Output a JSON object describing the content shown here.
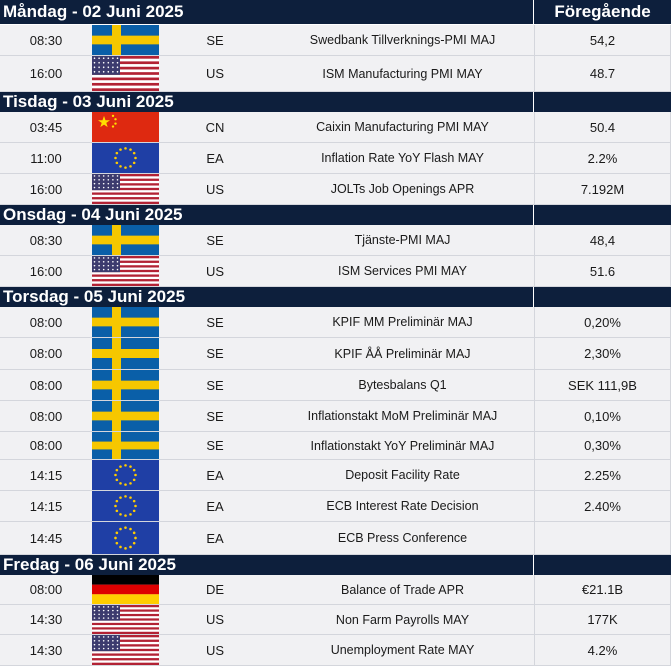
{
  "header_prev_label": "Föregående",
  "days": [
    {
      "label": "Måndag - 02 Juni 2025",
      "events": [
        {
          "time": "08:30",
          "flag": "se-flag-icon",
          "country": "SE",
          "event": "Swedbank Tillverknings-PMI MAJ",
          "previous": "54,2"
        },
        {
          "time": "16:00",
          "flag": "us-flag-icon",
          "country": "US",
          "event": "ISM Manufacturing PMI MAY",
          "previous": "48.7"
        }
      ]
    },
    {
      "label": "Tisdag - 03 Juni 2025",
      "events": [
        {
          "time": "03:45",
          "flag": "cn-flag-icon",
          "country": "CN",
          "event": "Caixin Manufacturing PMI MAY",
          "previous": "50.4"
        },
        {
          "time": "11:00",
          "flag": "eu-flag-icon",
          "country": "EA",
          "event": "Inflation Rate YoY Flash MAY",
          "previous": "2.2%"
        },
        {
          "time": "16:00",
          "flag": "us-flag-icon",
          "country": "US",
          "event": "JOLTs Job Openings APR",
          "previous": "7.192M"
        }
      ]
    },
    {
      "label": "Onsdag - 04 Juni 2025",
      "events": [
        {
          "time": "08:30",
          "flag": "se-flag-icon",
          "country": "SE",
          "event": "Tjänste-PMI MAJ",
          "previous": "48,4"
        },
        {
          "time": "16:00",
          "flag": "us-flag-icon",
          "country": "US",
          "event": "ISM Services PMI MAY",
          "previous": "51.6"
        }
      ]
    },
    {
      "label": "Torsdag - 05 Juni 2025",
      "events": [
        {
          "time": "08:00",
          "flag": "se-flag-icon",
          "country": "SE",
          "event": "KPIF MM Preliminär MAJ",
          "previous": "0,20%"
        },
        {
          "time": "08:00",
          "flag": "se-flag-icon",
          "country": "SE",
          "event": "KPIF ÅÅ Preliminär MAJ",
          "previous": "2,30%"
        },
        {
          "time": "08:00",
          "flag": "se-flag-icon",
          "country": "SE",
          "event": "Bytesbalans Q1",
          "previous": "SEK 111,9B"
        },
        {
          "time": "08:00",
          "flag": "se-flag-icon",
          "country": "SE",
          "event": "Inflationstakt MoM Preliminär MAJ",
          "previous": "0,10%"
        },
        {
          "time": "08:00",
          "flag": "se-flag-icon",
          "country": "SE",
          "event": "Inflationstakt YoY Preliminär MAJ",
          "previous": "0,30%"
        },
        {
          "time": "14:15",
          "flag": "eu-flag-icon",
          "country": "EA",
          "event": "Deposit Facility Rate",
          "previous": "2.25%"
        },
        {
          "time": "14:15",
          "flag": "eu-flag-icon",
          "country": "EA",
          "event": "ECB Interest Rate Decision",
          "previous": "2.40%"
        },
        {
          "time": "14:45",
          "flag": "eu-flag-icon",
          "country": "EA",
          "event": "ECB Press Conference",
          "previous": ""
        }
      ]
    },
    {
      "label": "Fredag - 06 Juni 2025",
      "events": [
        {
          "time": "08:00",
          "flag": "de-flag-icon",
          "country": "DE",
          "event": "Balance of Trade APR",
          "previous": "€21.1B"
        },
        {
          "time": "14:30",
          "flag": "us-flag-icon",
          "country": "US",
          "event": "Non Farm Payrolls MAY",
          "previous": "177K"
        },
        {
          "time": "14:30",
          "flag": "us-flag-icon",
          "country": "US",
          "event": "Unemployment Rate MAY",
          "previous": "4.2%"
        }
      ]
    }
  ]
}
